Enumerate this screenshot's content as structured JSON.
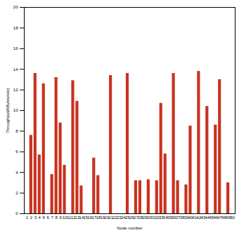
{
  "chart_data": {
    "type": "bar",
    "x_label": "Node number",
    "y_label": "Throughput(KBytes/sec)",
    "categories": [
      "1",
      "2",
      "3",
      "4",
      "5",
      "6",
      "7",
      "8",
      "9",
      "10",
      "11",
      "12",
      "13",
      "14",
      "15",
      "16",
      "17",
      "18",
      "19",
      "20",
      "21",
      "22",
      "23",
      "24",
      "25",
      "26",
      "27",
      "28",
      "29",
      "30",
      "31",
      "32",
      "33",
      "34",
      "35",
      "36",
      "37",
      "38",
      "39",
      "40",
      "41",
      "42",
      "43",
      "44",
      "45",
      "46",
      "47",
      "48",
      "49",
      "50"
    ],
    "values": [
      0,
      7.6,
      13.6,
      5.7,
      12.6,
      0,
      3.8,
      13.2,
      8.8,
      4.7,
      0,
      12.9,
      10.9,
      2.7,
      0,
      0,
      5.4,
      3.7,
      0,
      0,
      13.4,
      0,
      0,
      0,
      13.6,
      0,
      3.2,
      3.2,
      0,
      3.3,
      0,
      3.2,
      10.7,
      5.8,
      0,
      13.6,
      3.2,
      0,
      2.8,
      8.5,
      0,
      13.8,
      0,
      10.4,
      0,
      8.6,
      13.0,
      0,
      3.0,
      0
    ],
    "color": "#c8321e",
    "ylim": [
      0,
      20
    ],
    "yticks": [
      0,
      2,
      4,
      6,
      8,
      10,
      12,
      14,
      16,
      18,
      20
    ],
    "grid": false
  }
}
